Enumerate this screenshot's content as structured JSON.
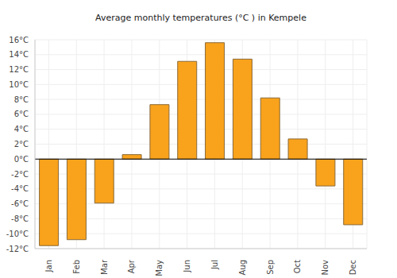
{
  "chart_data": {
    "type": "bar",
    "title": "Average monthly temperatures (°C ) in Kempele",
    "categories": [
      "Jan",
      "Feb",
      "Mar",
      "Apr",
      "May",
      "Jun",
      "Jul",
      "Aug",
      "Sep",
      "Oct",
      "Nov",
      "Dec"
    ],
    "values": [
      -11.6,
      -10.8,
      -5.9,
      0.6,
      7.3,
      13.1,
      15.6,
      13.4,
      8.2,
      2.7,
      -3.6,
      -8.8
    ],
    "color": "#f9a21b",
    "ylim": [
      -12,
      16
    ],
    "yticks": [
      {
        "value": -12,
        "label": "-12°C"
      },
      {
        "value": -10,
        "label": "-10°C"
      },
      {
        "value": -8,
        "label": "-8°C"
      },
      {
        "value": -6,
        "label": "-6°C"
      },
      {
        "value": -4,
        "label": "-4°C"
      },
      {
        "value": -2,
        "label": "-2°C"
      },
      {
        "value": 0,
        "label": "0°C"
      },
      {
        "value": 2,
        "label": "2°C"
      },
      {
        "value": 4,
        "label": "4°C"
      },
      {
        "value": 6,
        "label": "6°C"
      },
      {
        "value": 8,
        "label": "8°C"
      },
      {
        "value": 10,
        "label": "10°C"
      },
      {
        "value": 12,
        "label": "12°C"
      },
      {
        "value": 14,
        "label": "14°C"
      },
      {
        "value": 16,
        "label": "16°C"
      }
    ],
    "grid": true
  }
}
